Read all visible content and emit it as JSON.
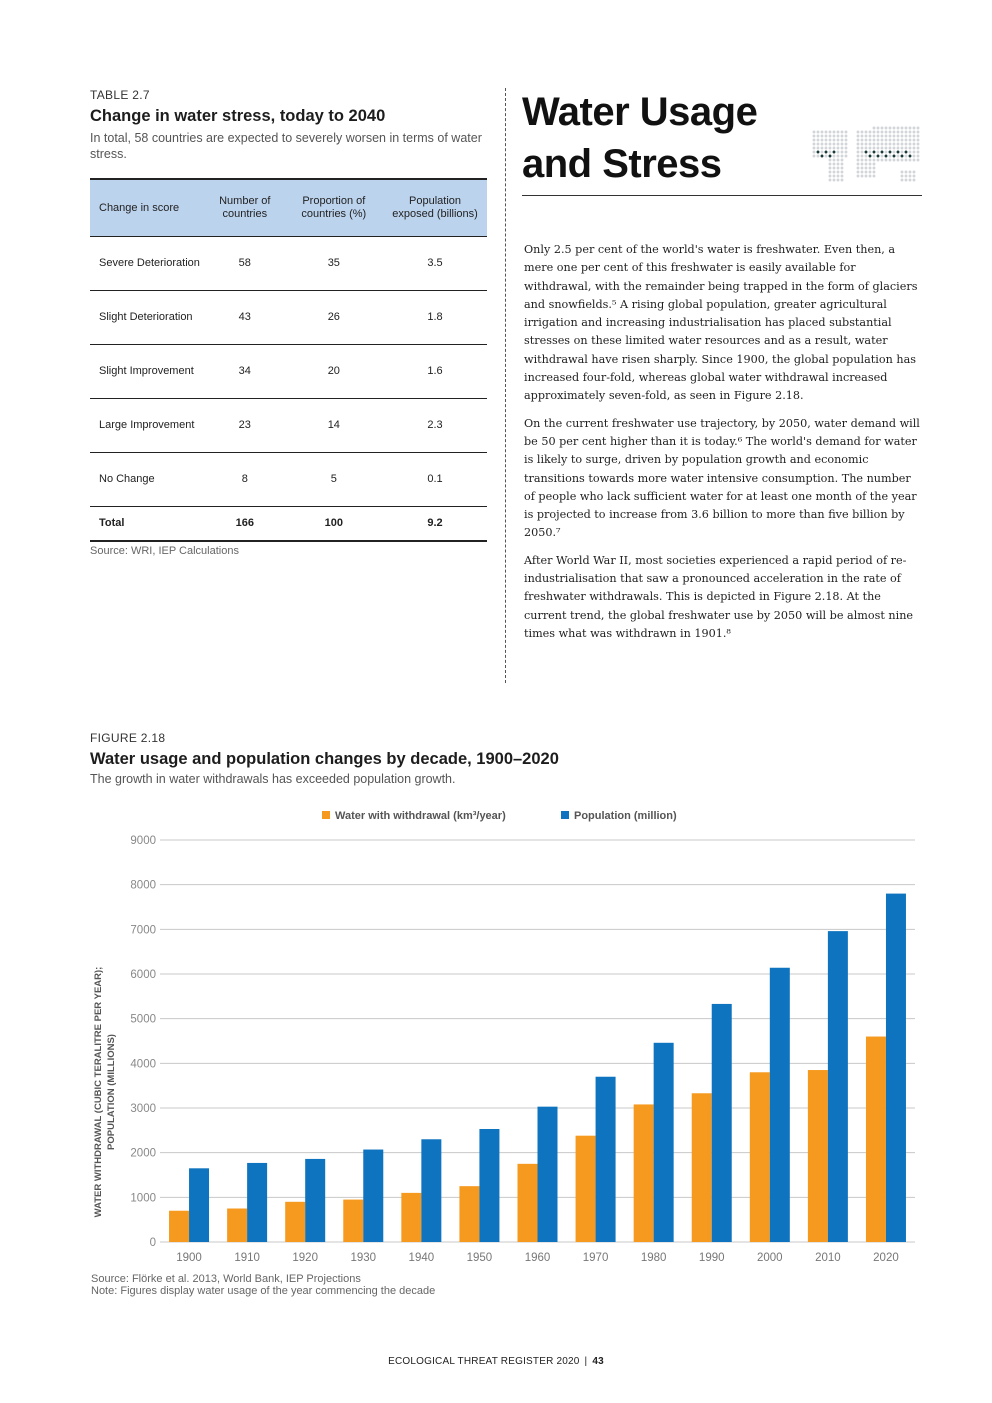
{
  "table": {
    "label": "TABLE 2.7",
    "title": "Change in water stress, today to 2040",
    "subtitle": "In total, 58 countries are expected to severely worsen in terms of water stress.",
    "headers": [
      "Change in score",
      "Number of countries",
      "Proportion of countries (%)",
      "Population exposed (billions)"
    ],
    "rows": [
      [
        "Severe Deterioration",
        "58",
        "35",
        "3.5"
      ],
      [
        "Slight Deterioration",
        "43",
        "26",
        "1.8"
      ],
      [
        "Slight Improvement",
        "34",
        "20",
        "1.6"
      ],
      [
        "Large Improvement",
        "23",
        "14",
        "2.3"
      ],
      [
        "No Change",
        "8",
        "5",
        "0.1"
      ]
    ],
    "total": [
      "Total",
      "166",
      "100",
      "9.2"
    ],
    "source": "Source: WRI, IEP Calculations"
  },
  "section": {
    "headline_line1": "Water Usage",
    "headline_line2": "and Stress",
    "paragraphs": [
      "Only 2.5 per cent of the world's water is freshwater. Even then, a mere one per cent of this freshwater is easily available for withdrawal, with the remainder being trapped in the form of glaciers and snowfields.⁵ A rising global population, greater agricultural irrigation and increasing industrialisation has placed substantial stresses on these limited water resources and as a result, water withdrawal have risen sharply. Since 1900, the global population has increased four-fold, whereas global water withdrawal increased approximately seven-fold, as seen in Figure 2.18.",
      "On the current freshwater use trajectory, by 2050, water demand will be 50 per cent higher than it is today.⁶ The world's demand for water is likely to surge, driven by population growth and economic transitions towards more water intensive consumption. The number of people who lack sufficient water for at least one month of the year is projected to increase from 3.6 billion to more than five billion by 2050.⁷",
      "After World War II, most societies experienced a rapid period of re-industrialisation that saw a pronounced acceleration in the rate of freshwater withdrawals. This is depicted in Figure 2.18. At the current trend, the global freshwater use by 2050 will be almost nine times what was withdrawn in 1901.⁸"
    ]
  },
  "figure": {
    "label": "FIGURE 2.18",
    "title": "Water usage and population changes by decade, 1900–2020",
    "subtitle": "The growth in water withdrawals has exceeded population growth.",
    "source_line1": "Source: Flörke et al. 2013, World Bank, IEP Projections",
    "source_line2": "Note: Figures display water usage of the year commencing the decade"
  },
  "chart_data": {
    "type": "bar",
    "title": "Water usage and population changes by decade, 1900–2020",
    "ylabel_line1": "WATER WITHDRAWAL (CUBIC TERALITRE PER YEAR);",
    "ylabel_line2": "POPULATION (MILLIONS)",
    "ylim": [
      0,
      9000
    ],
    "yticks": [
      0,
      1000,
      2000,
      3000,
      4000,
      5000,
      6000,
      7000,
      8000,
      9000
    ],
    "grid": true,
    "legend_position": "top-center",
    "categories": [
      "1900",
      "1910",
      "1920",
      "1930",
      "1940",
      "1950",
      "1960",
      "1970",
      "1980",
      "1990",
      "2000",
      "2010",
      "2020"
    ],
    "series": [
      {
        "name": "Water with withdrawal (km³/year)",
        "color": "#f59a1e",
        "values": [
          700,
          750,
          900,
          950,
          1100,
          1250,
          1750,
          2380,
          3080,
          3330,
          3800,
          3850,
          4600
        ]
      },
      {
        "name": "Population (million)",
        "color": "#0f74bf",
        "values": [
          1650,
          1770,
          1860,
          2070,
          2300,
          2530,
          3030,
          3700,
          4460,
          5330,
          6140,
          6960,
          7800
        ]
      }
    ]
  },
  "footer": {
    "publication": "ECOLOGICAL THREAT REGISTER 2020",
    "separator": "|",
    "page": "43"
  }
}
